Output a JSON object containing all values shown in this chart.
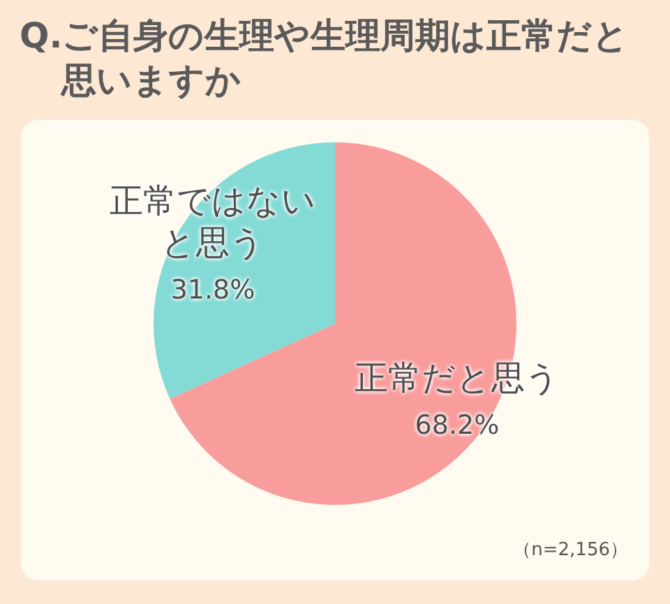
{
  "chart_data": {
    "type": "pie",
    "title": "Q.ご自身の生理や生理周期は正常だと思いますか",
    "categories": [
      "正常だと思う",
      "正常ではないと思う"
    ],
    "values": [
      68.2,
      31.8
    ],
    "value_labels": [
      "68.2%",
      "31.8%"
    ],
    "colors": [
      "#f89c9c",
      "#84dbd6"
    ],
    "annotations": [
      "（n=2,156）"
    ],
    "legend": false
  }
}
